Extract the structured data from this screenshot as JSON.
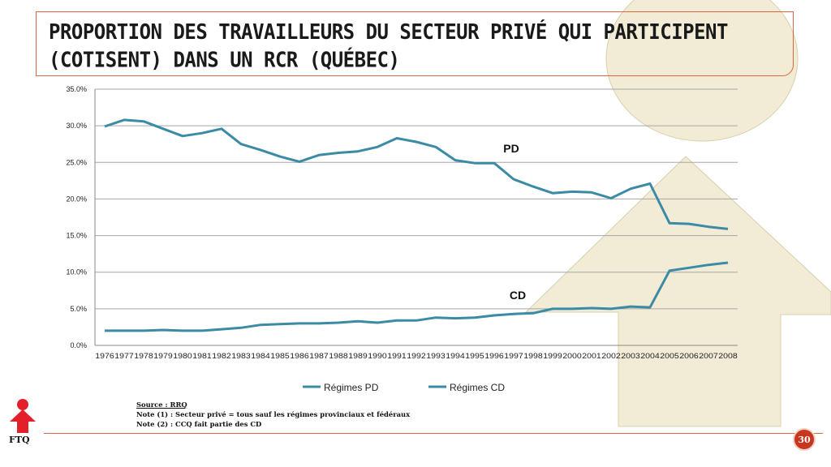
{
  "slide": {
    "title": "Proportion des travailleurs du secteur privé qui participent (cotisent) dans un RCR (Québec)",
    "page_number": "30",
    "logo_text": "FTQ",
    "source_label": "Source : RRQ",
    "note1": "Note (1) : Secteur privé = tous sauf les régimes provinciaux et fédéraux",
    "note2": "Note (2) : CCQ fait partie des CD"
  },
  "colors": {
    "series_line": "#3b8aa6",
    "accent": "#d9683c",
    "badge": "#c7361f",
    "logo_red": "#e3202a",
    "deco_fill": "#f2ecd6"
  },
  "chart_data": {
    "type": "line",
    "categories": [
      "1976",
      "1977",
      "1978",
      "1979",
      "1980",
      "1981",
      "1982",
      "1983",
      "1984",
      "1985",
      "1986",
      "1987",
      "1988",
      "1989",
      "1990",
      "1991",
      "1992",
      "1993",
      "1994",
      "1995",
      "1996",
      "1997",
      "1998",
      "1999",
      "2000",
      "2001",
      "2002",
      "2003",
      "2004",
      "2005",
      "2006",
      "2007",
      "2008"
    ],
    "yticks": [
      "0.0%",
      "5.0%",
      "10.0%",
      "15.0%",
      "20.0%",
      "25.0%",
      "30.0%",
      "35.0%"
    ],
    "ylim": [
      0,
      35
    ],
    "grid": true,
    "legend_position": "bottom",
    "series": [
      {
        "name": "Régimes PD",
        "label": "PD",
        "values": [
          29.9,
          30.8,
          30.6,
          29.6,
          28.6,
          29.0,
          29.6,
          27.5,
          26.7,
          25.8,
          25.1,
          26.0,
          26.3,
          26.5,
          27.1,
          28.3,
          27.8,
          27.1,
          25.3,
          24.9,
          24.9,
          22.7,
          21.7,
          20.8,
          21.0,
          20.9,
          20.1,
          21.4,
          22.1,
          16.7,
          16.6,
          16.2,
          15.9
        ]
      },
      {
        "name": "Régimes CD",
        "label": "CD",
        "values": [
          2.0,
          2.0,
          2.0,
          2.1,
          2.0,
          2.0,
          2.2,
          2.4,
          2.8,
          2.9,
          3.0,
          3.0,
          3.1,
          3.3,
          3.1,
          3.4,
          3.4,
          3.8,
          3.7,
          3.8,
          4.1,
          4.3,
          4.4,
          5.0,
          5.0,
          5.1,
          5.0,
          5.3,
          5.2,
          10.2,
          10.6,
          11.0,
          11.3
        ]
      }
    ]
  }
}
